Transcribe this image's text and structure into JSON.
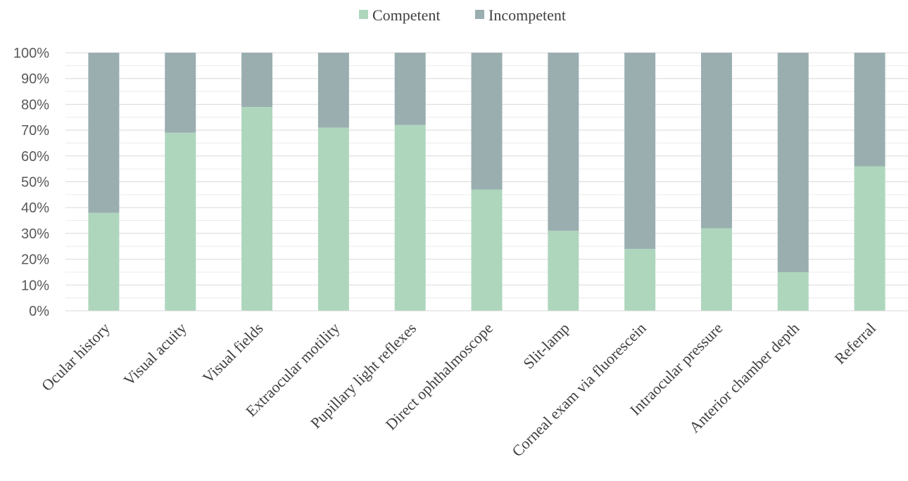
{
  "chart_data": {
    "type": "bar",
    "stacked": true,
    "normalized_percent": true,
    "categories": [
      "Ocular history",
      "Visual acuity",
      "Visual fields",
      "Extraocular motility",
      "Pupillary light reflexes",
      "Direct ophthalmoscope",
      "Slit-lamp",
      "Corneal exam via fluorescein",
      "Intraocular pressure",
      "Anterior chamber depth",
      "Referral"
    ],
    "series": [
      {
        "name": "Competent",
        "color": "#aed6bd",
        "values": [
          38,
          69,
          79,
          71,
          72,
          47,
          31,
          24,
          32,
          15,
          56
        ]
      },
      {
        "name": "Incompetent",
        "color": "#9aaeb0",
        "values": [
          62,
          31,
          21,
          29,
          28,
          53,
          69,
          76,
          68,
          85,
          44
        ]
      }
    ],
    "yticks": [
      "0%",
      "10%",
      "20%",
      "30%",
      "40%",
      "50%",
      "60%",
      "70%",
      "80%",
      "90%",
      "100%"
    ],
    "ylim": [
      0,
      100
    ],
    "grid": true,
    "legend": "top-center",
    "title": "",
    "xlabel": "",
    "ylabel": ""
  }
}
